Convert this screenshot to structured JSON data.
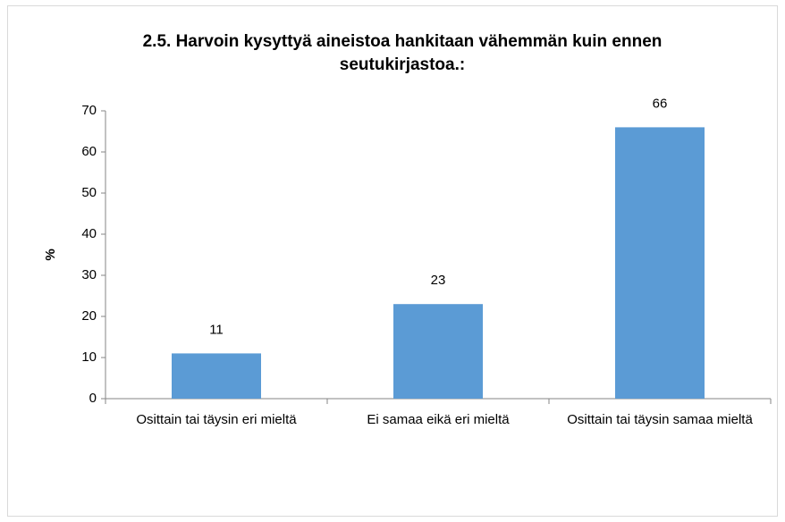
{
  "chart_data": {
    "type": "bar",
    "title": "2.5. Harvoin kysyttyä aineistoa hankitaan vähemmän kuin ennen seutukirjastoa.:",
    "y_label": "%",
    "categories": [
      "Osittain tai täysin eri mieltä",
      "Ei samaa eikä eri mieltä",
      "Osittain tai täysin samaa mieltä"
    ],
    "values": [
      11,
      23,
      66
    ],
    "color": "#5b9bd5",
    "ylim": [
      0,
      70
    ],
    "yticks": [
      0,
      10,
      20,
      30,
      40,
      50,
      60,
      70
    ],
    "grid": false
  }
}
